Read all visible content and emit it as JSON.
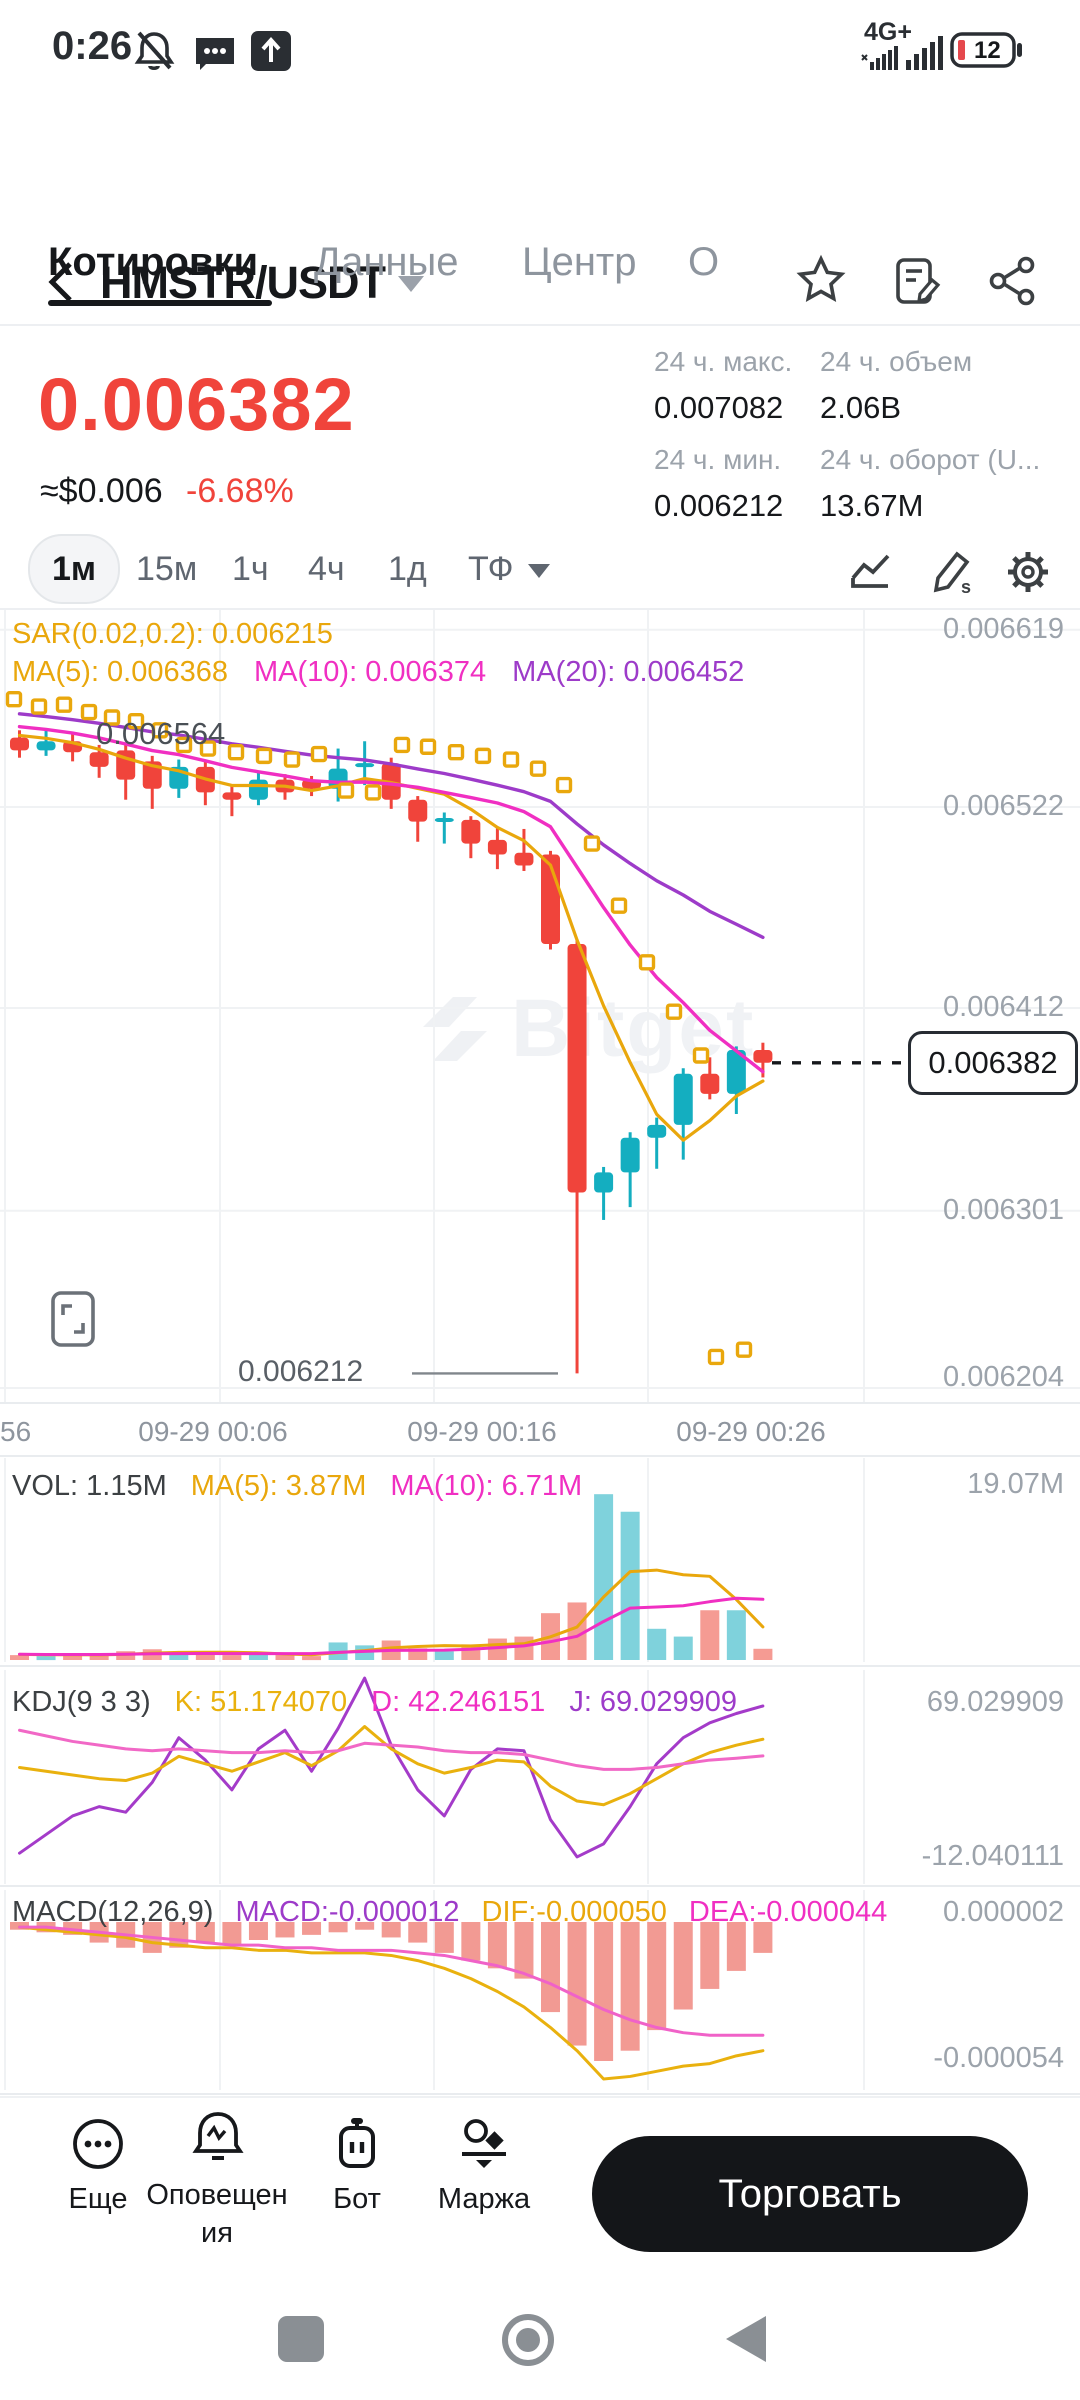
{
  "status_bar": {
    "time": "0:26",
    "network": "4G+",
    "battery": "12"
  },
  "header": {
    "pair": "HMSTR/USDT"
  },
  "tabs": {
    "items": [
      "Котировки",
      "Данные",
      "Центр",
      "О"
    ],
    "active": "Котировки"
  },
  "ticker": {
    "price": "0.006382",
    "fiat_approx": "≈$0.006",
    "change": "-6.68%",
    "stats": [
      {
        "label": "24 ч. макс.",
        "value": "0.007082"
      },
      {
        "label": "24 ч. объем",
        "value": "2.06B"
      },
      {
        "label": "24 ч. мин.",
        "value": "0.006212"
      },
      {
        "label": "24 ч. оборот (U...",
        "value": "13.67M"
      }
    ]
  },
  "toolbar": {
    "timeframes": [
      "1м",
      "15м",
      "1ч",
      "4ч",
      "1д"
    ],
    "active": "1м",
    "tf_label": "ТФ"
  },
  "chart_data": {
    "type": "candlestick",
    "pair": "HMSTR/USDT",
    "interval": "1m",
    "watermark": "Bitget",
    "indicator_labels": {
      "sar": "SAR(0.02,0.2): 0.006215",
      "ma5": "MA(5): 0.006368",
      "ma10": "MA(10): 0.006374",
      "ma20": "MA(20): 0.006452"
    },
    "y_axis_labels": [
      "0.006619",
      "0.006522",
      "0.006412",
      "0.006301",
      "0.006204"
    ],
    "y_axis_values": [
      0.006619,
      0.006522,
      0.006412,
      0.006301,
      0.006204
    ],
    "x_axis_labels": [
      "56",
      "09-29 00:06",
      "09-29 00:16",
      "09-29 00:26"
    ],
    "last_price": "0.006382",
    "last_price_value": 0.006382,
    "low_marker": "0.006212",
    "open_marker": "0.006564",
    "candles": [
      [
        0.00656,
        0.006564,
        0.006549,
        0.006553
      ],
      [
        0.006553,
        0.006565,
        0.00655,
        0.006558
      ],
      [
        0.006558,
        0.006562,
        0.006547,
        0.006552
      ],
      [
        0.006552,
        0.006556,
        0.006538,
        0.006544
      ],
      [
        0.006553,
        0.006556,
        0.006526,
        0.006537
      ],
      [
        0.006547,
        0.00655,
        0.006521,
        0.006532
      ],
      [
        0.006532,
        0.006548,
        0.006527,
        0.006544
      ],
      [
        0.006544,
        0.006547,
        0.006523,
        0.00653
      ],
      [
        0.00653,
        0.006534,
        0.006517,
        0.006526
      ],
      [
        0.006526,
        0.006541,
        0.006523,
        0.006537
      ],
      [
        0.006537,
        0.00654,
        0.006526,
        0.00653
      ],
      [
        0.006537,
        0.006539,
        0.006528,
        0.006532
      ],
      [
        0.006532,
        0.006554,
        0.006525,
        0.006543
      ],
      [
        0.006546,
        0.006558,
        0.006534,
        0.006546
      ],
      [
        0.006546,
        0.006549,
        0.006521,
        0.006526
      ],
      [
        0.006526,
        0.006528,
        0.006503,
        0.006514
      ],
      [
        0.006516,
        0.006519,
        0.006502,
        0.006516
      ],
      [
        0.006515,
        0.006517,
        0.006494,
        0.006502
      ],
      [
        0.006504,
        0.006511,
        0.006488,
        0.006496
      ],
      [
        0.006497,
        0.00651,
        0.006487,
        0.00649
      ],
      [
        0.006496,
        0.006498,
        0.006444,
        0.006447
      ],
      [
        0.006447,
        0.006449,
        0.006212,
        0.006311
      ],
      [
        0.006311,
        0.006325,
        0.006296,
        0.006322
      ],
      [
        0.006322,
        0.006344,
        0.006303,
        0.006341
      ],
      [
        0.006341,
        0.006352,
        0.006324,
        0.006348
      ],
      [
        0.006348,
        0.006379,
        0.006329,
        0.006376
      ],
      [
        0.006376,
        0.006385,
        0.006362,
        0.006365
      ],
      [
        0.006365,
        0.006391,
        0.006354,
        0.006389
      ],
      [
        0.006389,
        0.006393,
        0.006374,
        0.006382
      ]
    ],
    "pre_closes": [
      0.00659,
      0.006588,
      0.006586,
      0.006584,
      0.006582,
      0.00658,
      0.006578,
      0.006577,
      0.006576,
      0.006575,
      0.006574,
      0.006573,
      0.006572,
      0.006571,
      0.00657,
      0.006568,
      0.006566,
      0.006564,
      0.006562,
      0.006561
    ],
    "sar_dots": [
      [
        14,
        0.006581
      ],
      [
        39,
        0.006577
      ],
      [
        64,
        0.006578
      ],
      [
        89,
        0.006574
      ],
      [
        112,
        0.006571
      ],
      [
        136,
        0.006569
      ],
      [
        160,
        0.006564
      ],
      [
        184,
        0.006556
      ],
      [
        208,
        0.006554
      ],
      [
        236,
        0.006552
      ],
      [
        264,
        0.00655
      ],
      [
        292,
        0.006548
      ],
      [
        319,
        0.006551
      ],
      [
        346,
        0.006531
      ],
      [
        373,
        0.00653
      ],
      [
        402,
        0.006556
      ],
      [
        428,
        0.006555
      ],
      [
        456,
        0.006552
      ],
      [
        483,
        0.00655
      ],
      [
        511,
        0.006548
      ],
      [
        538,
        0.006543
      ],
      [
        564,
        0.006534
      ],
      [
        592,
        0.006502
      ],
      [
        619,
        0.006468
      ],
      [
        647,
        0.006437
      ],
      [
        674,
        0.00641
      ],
      [
        701,
        0.006386
      ],
      [
        716,
        0.006221
      ],
      [
        744,
        0.006225
      ]
    ],
    "volume": {
      "vol_label": "VOL: 1.15M",
      "ma5_label": "MA(5): 3.87M",
      "ma10_label": "MA(10): 6.71M",
      "scale_top": "19.07M",
      "scale_top_value": 19.07,
      "values_m": [
        0.5,
        0.4,
        0.6,
        0.5,
        0.9,
        1.1,
        0.8,
        0.7,
        0.5,
        0.6,
        0.5,
        0.4,
        1.8,
        1.5,
        2.0,
        1.2,
        0.9,
        1.6,
        2.2,
        2.4,
        4.8,
        5.9,
        17.0,
        15.2,
        3.2,
        2.4,
        5.1,
        5.1,
        1.15
      ],
      "pre_values": [
        0.6,
        0.6,
        0.6,
        0.6,
        0.6,
        0.6,
        0.6,
        0.6,
        0.6,
        0.6
      ]
    },
    "kdj": {
      "label": "KDJ(9 3 3)",
      "k_label": "K: 51.174070",
      "d_label": "D: 42.246151",
      "j_label": "J: 69.029909",
      "top": "69.029909",
      "bottom": "-12.040111",
      "top_value": 69.029909,
      "bottom_value": -12.040111,
      "k": [
        36,
        34,
        32,
        30,
        29,
        33,
        42,
        38,
        34,
        39,
        44,
        37,
        45,
        58,
        46,
        38,
        33,
        36,
        40,
        39,
        26,
        18,
        16,
        22,
        30,
        38,
        44,
        48,
        51.17
      ],
      "d": [
        56,
        53,
        50,
        48,
        46,
        45,
        46,
        45,
        44,
        44,
        45,
        44,
        45,
        49,
        48,
        47,
        45,
        44,
        44,
        43,
        40,
        37,
        35,
        35,
        36,
        38,
        40,
        41,
        42.25
      ],
      "j": [
        -10,
        0,
        10,
        15,
        12,
        28,
        52,
        40,
        24,
        46,
        56,
        34,
        57,
        84,
        48,
        24,
        10,
        35,
        46,
        45,
        8,
        -12,
        -5,
        15,
        38,
        52,
        60,
        65,
        69.03
      ]
    },
    "macd": {
      "label": "MACD(12,26,9)",
      "macd_label": "MACD:-0.000012",
      "dif_label": "DIF:-0.000050",
      "dea_label": "DEA:-0.000044",
      "top": "0.000002",
      "bottom": "-0.000054",
      "hist_micro": [
        -3,
        -4,
        -5,
        -8,
        -10,
        -12,
        -10,
        -8,
        -9,
        -7,
        -6,
        -5,
        -4,
        -3,
        -6,
        -8,
        -12,
        -15,
        -18,
        -22,
        -35,
        -48,
        -54,
        -50,
        -42,
        -34,
        -26,
        -19,
        -12
      ],
      "dif_micro": [
        -2,
        -3,
        -4,
        -5,
        -6,
        -8,
        -9,
        -10,
        -10,
        -11,
        -11,
        -12,
        -12,
        -12,
        -13,
        -15,
        -18,
        -22,
        -27,
        -33,
        -41,
        -50,
        -61,
        -60,
        -58,
        -56,
        -55,
        -52,
        -50
      ],
      "dea_micro": [
        -2,
        -2,
        -3,
        -4,
        -5,
        -6,
        -7,
        -8,
        -9,
        -9,
        -10,
        -10,
        -11,
        -11,
        -11,
        -12,
        -13,
        -15,
        -17,
        -20,
        -24,
        -29,
        -34,
        -38,
        -41,
        -43,
        -44,
        -44,
        -44
      ]
    },
    "colors": {
      "up": "#14AEC0",
      "down": "#F0443B",
      "vol_up": "#7FD2DC",
      "vol_down": "#F59B93",
      "ma5": "#E9A70C",
      "ma10": "#F02FC2",
      "ma20": "#9D3BC9",
      "kdj_k": "#E9B10E",
      "kdj_d": "#F168C6",
      "kdj_j": "#A43BC9",
      "macd_hist": "#F29A93",
      "dif": "#E9B10E",
      "dea": "#F062C8",
      "grid": "#F0F2F4",
      "divider": "#E9ECEF",
      "axis_text": "#9CA3AB"
    }
  },
  "trade_bar": {
    "items": [
      "Еще",
      "Оповещения",
      "Бот",
      "Маржа"
    ],
    "trade_label": "Торговать"
  }
}
